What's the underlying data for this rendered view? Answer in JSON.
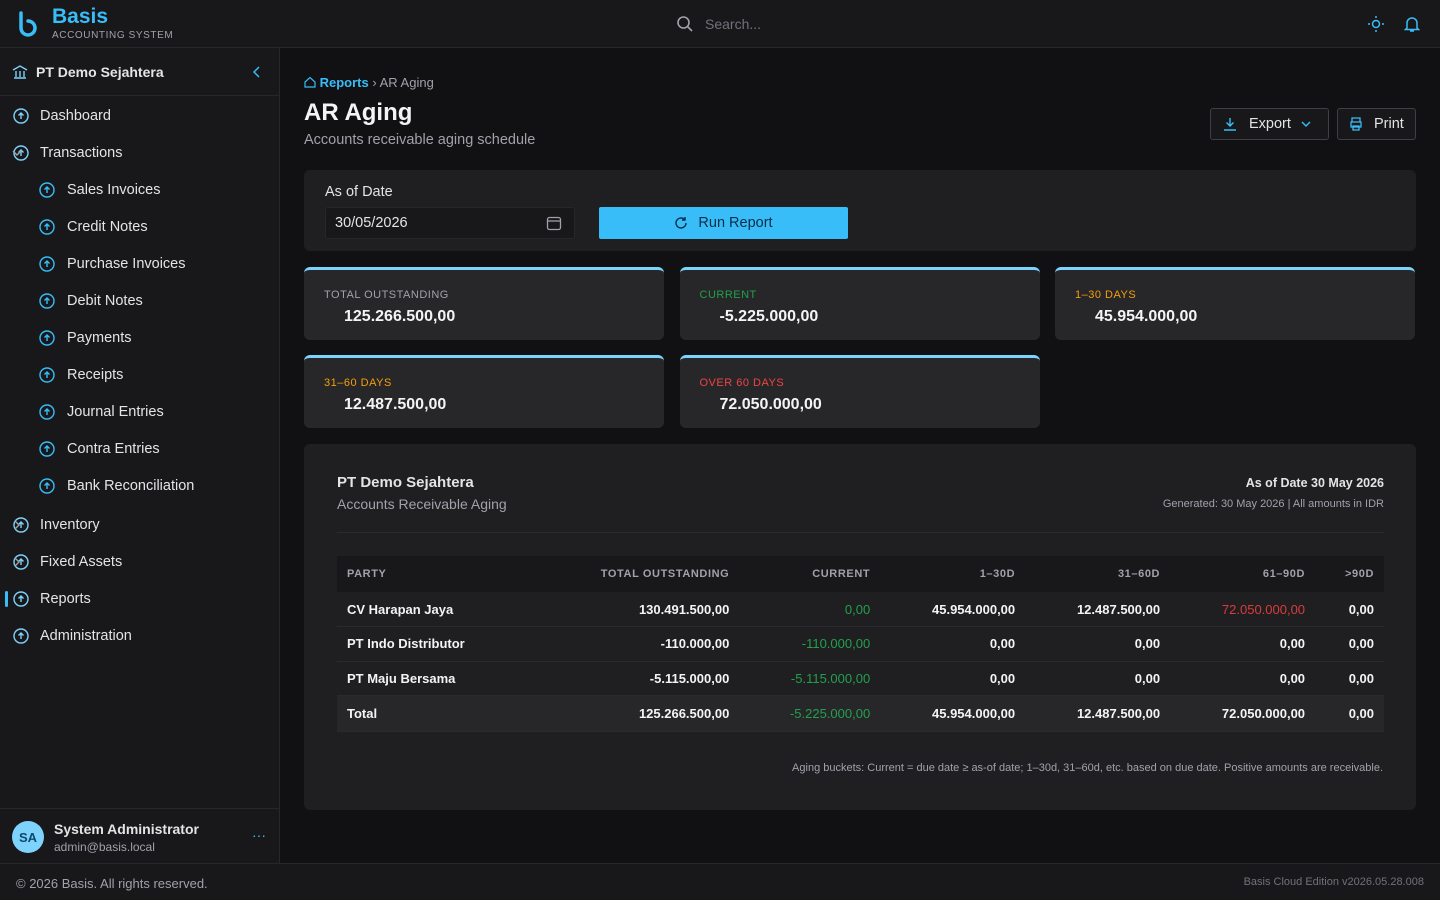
{
  "header": {
    "brand": "Basis",
    "tagline": "ACCOUNTING SYSTEM",
    "search_placeholder": "Search..."
  },
  "sidebar": {
    "company": "PT Demo Sejahtera",
    "nav": [
      {
        "label": "Dashboard"
      },
      {
        "label": "Transactions",
        "children": [
          "Sales Invoices",
          "Credit Notes",
          "Purchase Invoices",
          "Debit Notes",
          "Payments",
          "Receipts",
          "Journal Entries",
          "Contra Entries",
          "Bank Reconciliation"
        ]
      },
      {
        "label": "Inventory"
      },
      {
        "label": "Fixed Assets"
      },
      {
        "label": "Reports"
      },
      {
        "label": "Administration"
      }
    ],
    "user": {
      "initials": "SA",
      "name": "System Administrator",
      "email": "admin@basis.local"
    }
  },
  "breadcrumb": [
    "Reports",
    "AR Aging"
  ],
  "page": {
    "title": "AR Aging",
    "subtitle": "Accounts receivable aging schedule",
    "export": "Export",
    "print": "Print"
  },
  "filter": {
    "label": "As of Date",
    "date": "30/05/2026",
    "run": "Run Report"
  },
  "cards": [
    {
      "label": "TOTAL OUTSTANDING",
      "value": "125.266.500,00"
    },
    {
      "label": "CURRENT",
      "value": "-5.225.000,00"
    },
    {
      "label": "1–30 DAYS",
      "value": "45.954.000,00"
    },
    {
      "label": "31–60 DAYS",
      "value": "12.487.500,00"
    },
    {
      "label": "OVER 60 DAYS",
      "value": "72.050.000,00"
    }
  ],
  "report": {
    "company": "PT Demo Sejahtera",
    "name": "Accounts Receivable Aging",
    "as_of": "As of Date 30 May 2026",
    "generated": "Generated: 30 May 2026 | All amounts in IDR",
    "columns": [
      "PARTY",
      "TOTAL OUTSTANDING",
      "CURRENT",
      "1–30D",
      "31–60D",
      "61–90D",
      ">90D"
    ],
    "rows": [
      [
        "CV Harapan Jaya",
        "130.491.500,00",
        "0,00",
        "45.954.000,00",
        "12.487.500,00",
        "72.050.000,00",
        "0,00"
      ],
      [
        "PT Indo Distributor",
        "-110.000,00",
        "-110.000,00",
        "0,00",
        "0,00",
        "0,00",
        "0,00"
      ],
      [
        "PT Maju Bersama",
        "-5.115.000,00",
        "-5.115.000,00",
        "0,00",
        "0,00",
        "0,00",
        "0,00"
      ]
    ],
    "total": [
      "Total",
      "125.266.500,00",
      "-5.225.000,00",
      "45.954.000,00",
      "12.487.500,00",
      "72.050.000,00",
      "0,00"
    ],
    "note": "Aging buckets: Current = due date ≥ as-of date; 1–30d, 31–60d, etc. based on due date. Positive amounts are receivable."
  },
  "footer": {
    "copyright": "© 2026 Basis. All rights reserved.",
    "version": "Basis Cloud Edition v2026.05.28.008"
  }
}
